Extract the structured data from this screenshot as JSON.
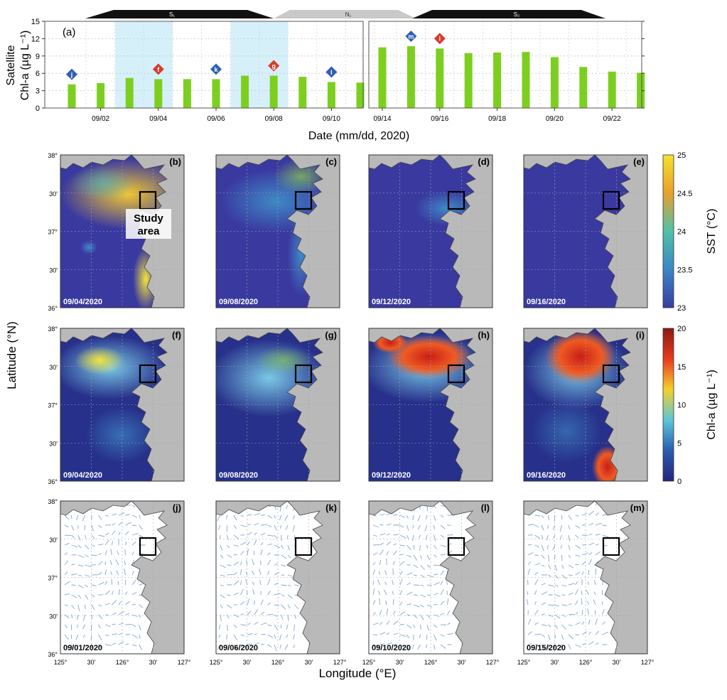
{
  "chart_data": {
    "type": "bar",
    "panel_label": "(a)",
    "ylabel_lines": [
      "Satellite",
      "Chl-a (µg L⁻¹)"
    ],
    "xlabel": "Date (mm/dd, 2020)",
    "ylim": [
      0,
      15
    ],
    "yticks": [
      0,
      3,
      6,
      9,
      12,
      15
    ],
    "x": [
      "09/01",
      "09/02",
      "09/03",
      "09/04",
      "09/05",
      "09/06",
      "09/07",
      "09/08",
      "09/09",
      "09/10",
      "09/11",
      "09/14",
      "09/15",
      "09/16",
      "09/17",
      "09/18",
      "09/19",
      "09/20",
      "09/21",
      "09/22",
      "09/23"
    ],
    "values": [
      4.1,
      4.3,
      5.2,
      5.0,
      5.0,
      5.0,
      5.6,
      5.6,
      5.4,
      4.5,
      4.4,
      10.5,
      10.7,
      10.3,
      9.5,
      9.6,
      9.7,
      8.8,
      7.1,
      6.3,
      6.1
    ],
    "xtick_labels": [
      "09/02",
      "09/04",
      "09/06",
      "09/08",
      "09/10",
      "09/14",
      "09/16",
      "09/18",
      "09/20",
      "09/22"
    ],
    "bar_color": "#7ccf1f",
    "shaded_periods": [
      [
        "09/03",
        "09/04"
      ],
      [
        "09/07",
        "09/08"
      ]
    ],
    "shade_color": "#d6f0fa",
    "markers": [
      {
        "date": "09/01",
        "letter": "j",
        "color": "#2f5fb3"
      },
      {
        "date": "09/04",
        "letter": "f",
        "color": "#d93b2a"
      },
      {
        "date": "09/06",
        "letter": "k",
        "color": "#2f5fb3"
      },
      {
        "date": "09/08",
        "letter": "g",
        "color": "#d93b2a"
      },
      {
        "date": "09/10",
        "letter": "l",
        "color": "#2f5fb3"
      },
      {
        "date": "09/15",
        "letter": "m",
        "color": "#2f5fb3"
      },
      {
        "date": "09/16",
        "letter": "i",
        "color": "#d93b2a"
      }
    ],
    "tide_bands": [
      {
        "label": "S₁",
        "color": "#111111"
      },
      {
        "label": "N₁",
        "color": "#c9c9c9"
      },
      {
        "label": "S₂",
        "color": "#111111"
      }
    ]
  },
  "maps": {
    "rows": [
      {
        "type": "sst",
        "panels": [
          {
            "label": "(b)",
            "date": "09/04/2020"
          },
          {
            "label": "(c)",
            "date": "09/08/2020"
          },
          {
            "label": "(d)",
            "date": "09/12/2020"
          },
          {
            "label": "(e)",
            "date": "09/16/2020"
          }
        ]
      },
      {
        "type": "chl",
        "panels": [
          {
            "label": "(f)",
            "date": "09/04/2020"
          },
          {
            "label": "(g)",
            "date": "09/08/2020"
          },
          {
            "label": "(h)",
            "date": "09/12/2020"
          },
          {
            "label": "(i)",
            "date": "09/16/2020"
          }
        ]
      },
      {
        "type": "current",
        "panels": [
          {
            "label": "(j)",
            "date": "09/01/2020"
          },
          {
            "label": "(k)",
            "date": "09/06/2020"
          },
          {
            "label": "(l)",
            "date": "09/10/2020"
          },
          {
            "label": "(m)",
            "date": "09/15/2020"
          }
        ]
      }
    ],
    "study_area_label": [
      "Study",
      "area"
    ],
    "lat_ticks": [
      "38°",
      "30'",
      "37°",
      "30'",
      "36°"
    ],
    "lon_ticks": [
      "125°",
      "30'",
      "126°",
      "30'",
      "127°"
    ],
    "ylabel": "Latitude (°N)",
    "xlabel": "Longitude (°E)",
    "colorbars": {
      "sst": {
        "label": "SST (°C)",
        "ticks": [
          "25",
          "24.5",
          "24",
          "23.5",
          "23"
        ],
        "colors": [
          "#f5e02a",
          "#e8a12d",
          "#4fc1a8",
          "#3b86c4",
          "#3a3ca3"
        ]
      },
      "chl": {
        "label": "Chl-a (µg L⁻¹)",
        "ticks": [
          "20",
          "15",
          "10",
          "5",
          "0"
        ],
        "colors": [
          "#8b1a12",
          "#e83a1e",
          "#f4d02c",
          "#5cc6d8",
          "#2a5cb0",
          "#26237c"
        ]
      }
    }
  }
}
